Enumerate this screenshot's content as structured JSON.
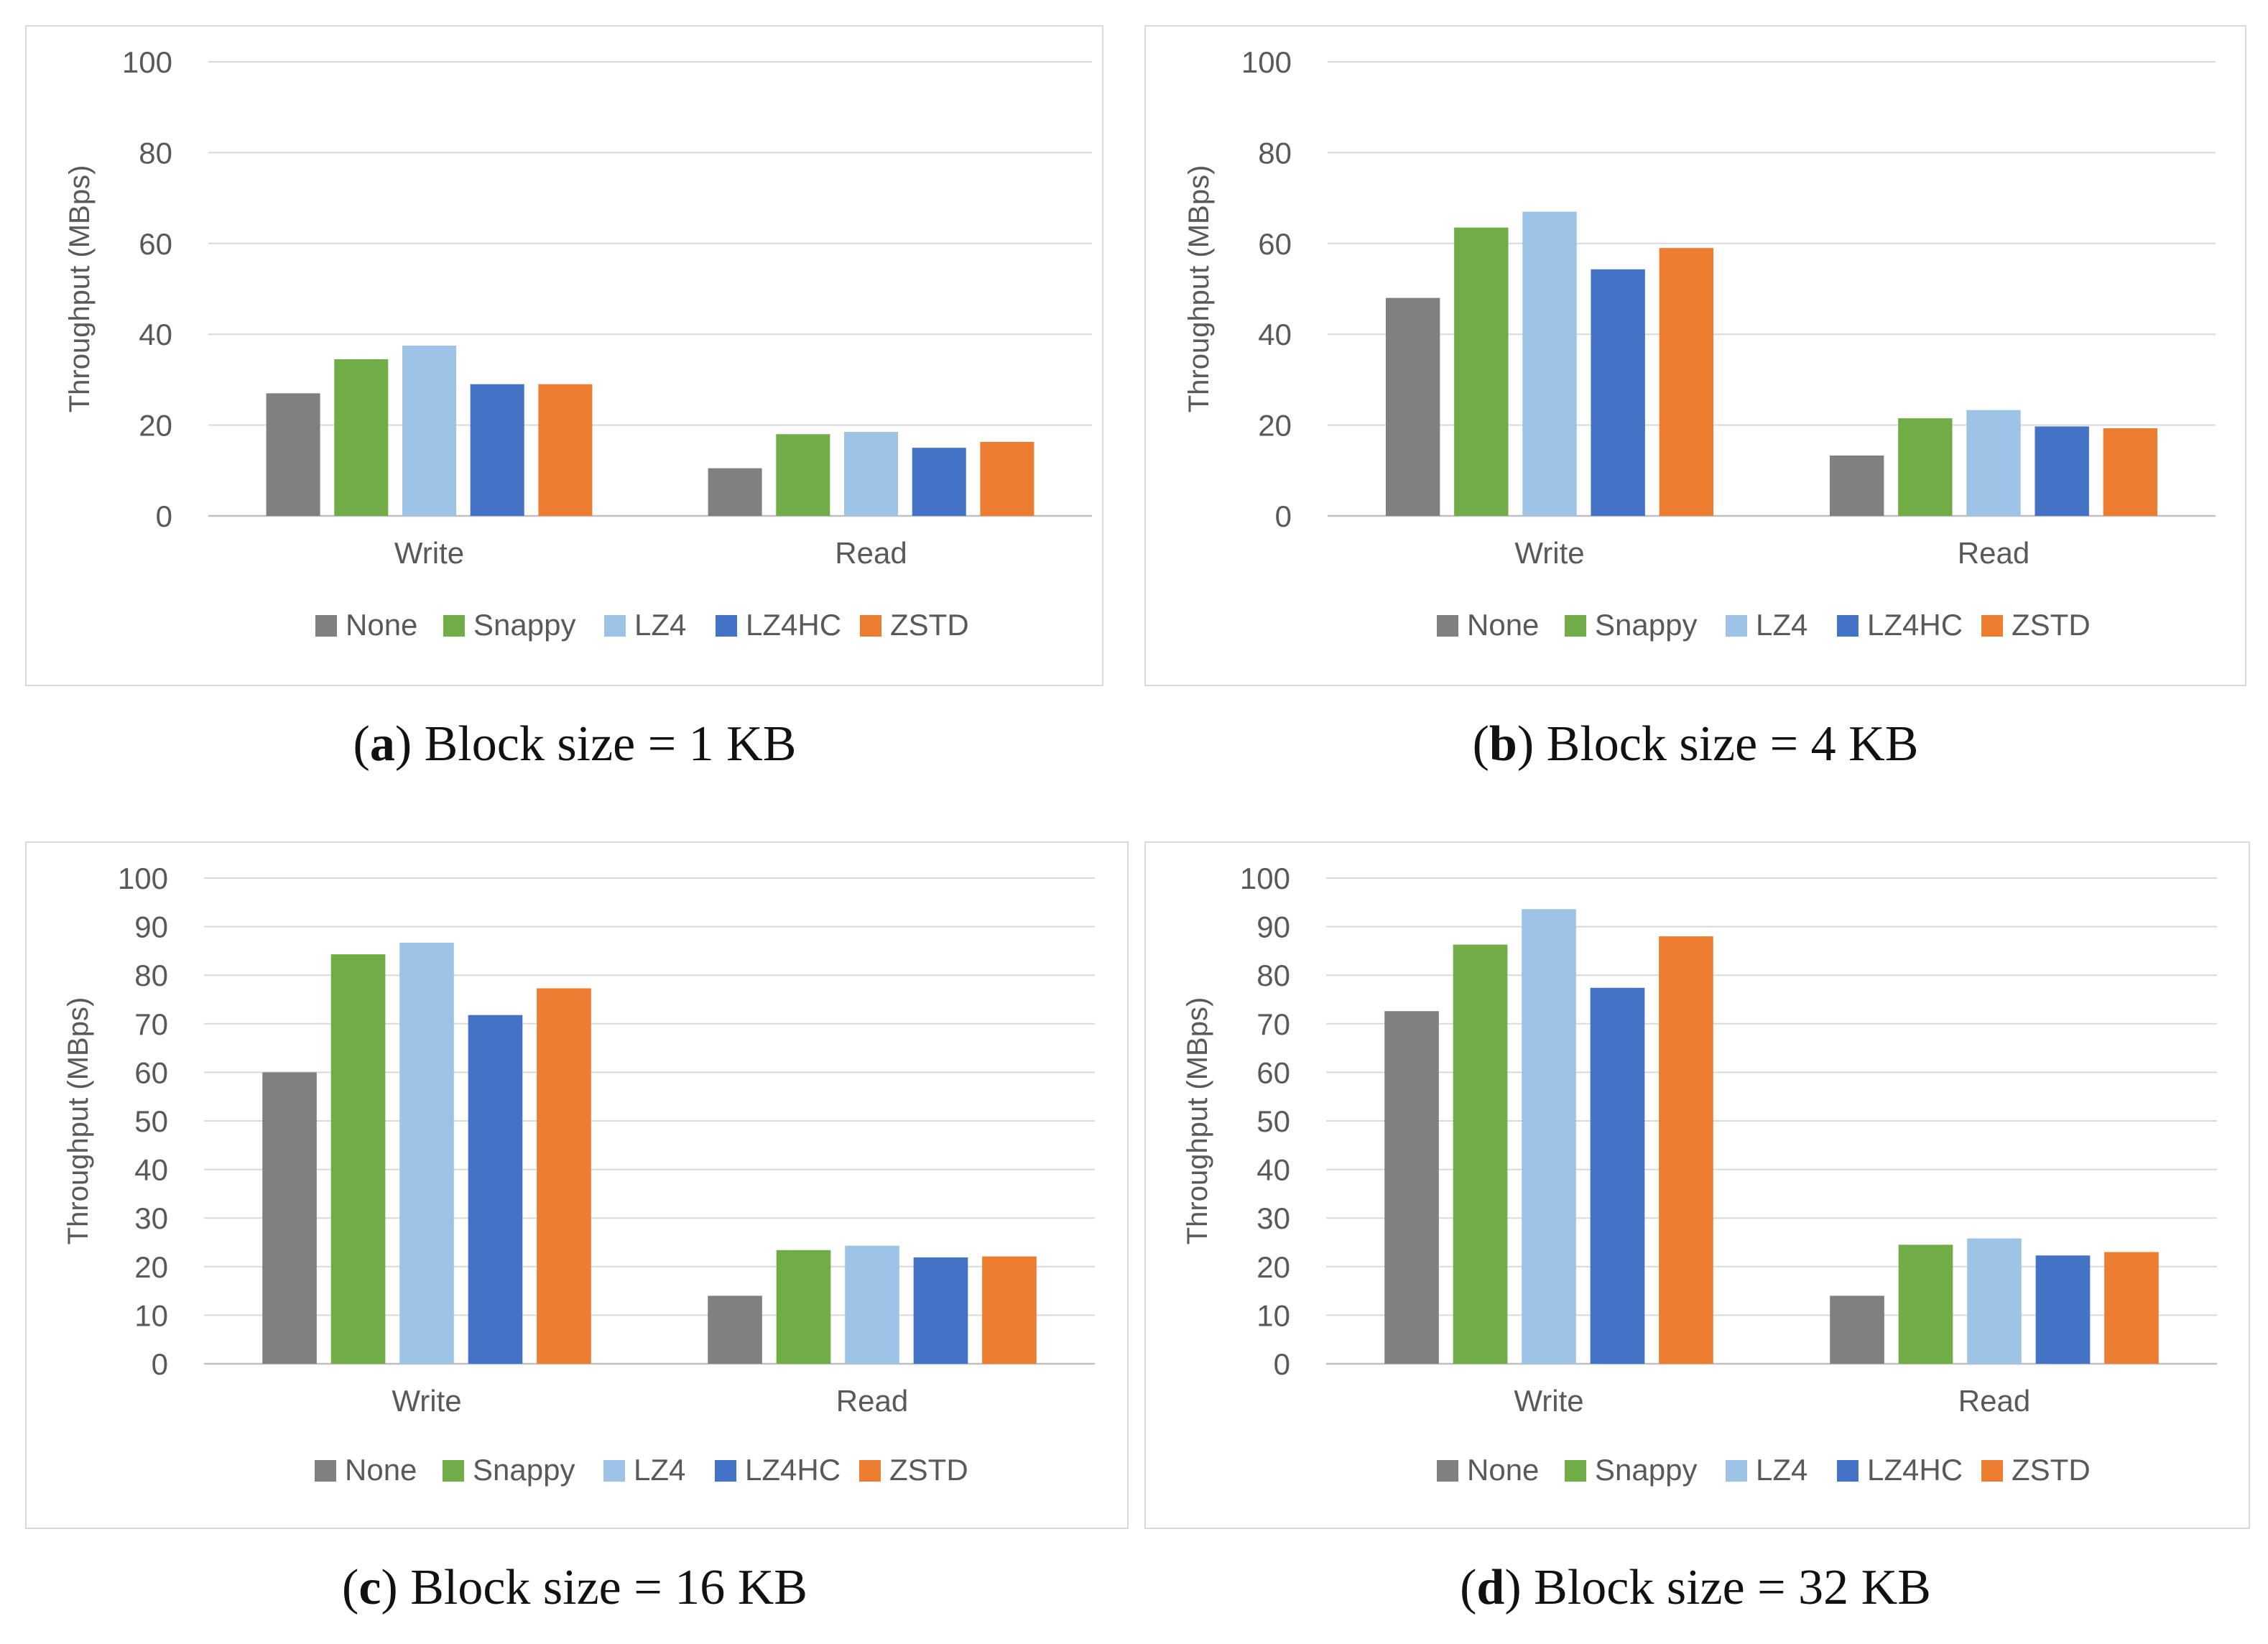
{
  "colors": {
    "None": "#808080",
    "Snappy": "#70ad47",
    "LZ4": "#9dc3e6",
    "LZ4HC": "#4472c4",
    "ZSTD": "#ed7d31"
  },
  "chart_data": [
    {
      "type": "bar",
      "caption_letter": "a",
      "caption_text": "Block size = 1 KB",
      "ylabel": "Throughput (MBps)",
      "ylim": [
        0,
        100
      ],
      "yticks": [
        0,
        20,
        40,
        60,
        80,
        100
      ],
      "categories": [
        "Write",
        "Read"
      ],
      "legend_position": "bottom",
      "series": [
        {
          "name": "None",
          "values": [
            27,
            10.5
          ]
        },
        {
          "name": "Snappy",
          "values": [
            34.5,
            18
          ]
        },
        {
          "name": "LZ4",
          "values": [
            37.5,
            18.5
          ]
        },
        {
          "name": "LZ4HC",
          "values": [
            29,
            15
          ]
        },
        {
          "name": "ZSTD",
          "values": [
            29,
            16.3
          ]
        }
      ]
    },
    {
      "type": "bar",
      "caption_letter": "b",
      "caption_text": "Block size = 4 KB",
      "ylabel": "Throughput (MBps)",
      "ylim": [
        0,
        100
      ],
      "yticks": [
        0,
        20,
        40,
        60,
        80,
        100
      ],
      "categories": [
        "Write",
        "Read"
      ],
      "legend_position": "bottom",
      "series": [
        {
          "name": "None",
          "values": [
            48,
            13.3
          ]
        },
        {
          "name": "Snappy",
          "values": [
            63.5,
            21.5
          ]
        },
        {
          "name": "LZ4",
          "values": [
            67,
            23.3
          ]
        },
        {
          "name": "LZ4HC",
          "values": [
            54.3,
            19.7
          ]
        },
        {
          "name": "ZSTD",
          "values": [
            59,
            19.3
          ]
        }
      ]
    },
    {
      "type": "bar",
      "caption_letter": "c",
      "caption_text": "Block size = 16 KB",
      "ylabel": "Throughput (MBps)",
      "ylim": [
        0,
        100
      ],
      "yticks": [
        0,
        10,
        20,
        30,
        40,
        50,
        60,
        70,
        80,
        90,
        100
      ],
      "categories": [
        "Write",
        "Read"
      ],
      "legend_position": "bottom",
      "series": [
        {
          "name": "None",
          "values": [
            60,
            14
          ]
        },
        {
          "name": "Snappy",
          "values": [
            84.3,
            23.4
          ]
        },
        {
          "name": "LZ4",
          "values": [
            86.7,
            24.3
          ]
        },
        {
          "name": "LZ4HC",
          "values": [
            71.8,
            21.9
          ]
        },
        {
          "name": "ZSTD",
          "values": [
            77.3,
            22.1
          ]
        }
      ]
    },
    {
      "type": "bar",
      "caption_letter": "d",
      "caption_text": "Block size = 32 KB",
      "ylabel": "Throughput (MBps)",
      "ylim": [
        0,
        100
      ],
      "yticks": [
        0,
        10,
        20,
        30,
        40,
        50,
        60,
        70,
        80,
        90,
        100
      ],
      "categories": [
        "Write",
        "Read"
      ],
      "legend_position": "bottom",
      "series": [
        {
          "name": "None",
          "values": [
            72.6,
            14
          ]
        },
        {
          "name": "Snappy",
          "values": [
            86.3,
            24.5
          ]
        },
        {
          "name": "LZ4",
          "values": [
            93.6,
            25.8
          ]
        },
        {
          "name": "LZ4HC",
          "values": [
            77.4,
            22.3
          ]
        },
        {
          "name": "ZSTD",
          "values": [
            88,
            23
          ]
        }
      ]
    }
  ]
}
